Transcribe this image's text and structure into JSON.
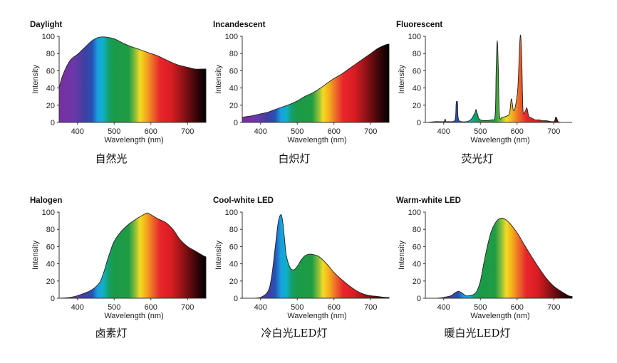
{
  "x_axis_label": "Wavelength (nm)",
  "y_axis_label": "Intensity",
  "chart_data": [
    {
      "type": "area",
      "title": "Daylight",
      "caption": "自然光",
      "xlabel": "Wavelength (nm)",
      "ylabel": "Intensity",
      "xlim": [
        350,
        750
      ],
      "ylim": [
        0,
        100
      ],
      "xticks": [
        400,
        500,
        600,
        700
      ],
      "yticks": [
        0,
        20,
        40,
        60,
        80,
        100
      ],
      "series": [
        {
          "x": [
            350,
            360,
            380,
            400,
            420,
            440,
            460,
            480,
            500,
            520,
            540,
            560,
            580,
            600,
            620,
            640,
            660,
            680,
            700,
            720,
            740,
            750
          ],
          "values": [
            40,
            55,
            72,
            79,
            87,
            95,
            99,
            99,
            97,
            93,
            89,
            86,
            83,
            80,
            77,
            73,
            69,
            66,
            64,
            62,
            62,
            62
          ]
        }
      ]
    },
    {
      "type": "area",
      "title": "Incandescent",
      "caption": "白炽灯",
      "xlabel": "Wavelength (nm)",
      "ylabel": "Intensity",
      "xlim": [
        350,
        750
      ],
      "ylim": [
        0,
        100
      ],
      "xticks": [
        400,
        500,
        600,
        700
      ],
      "yticks": [
        0,
        20,
        40,
        60,
        80,
        100
      ],
      "series": [
        {
          "x": [
            350,
            380,
            400,
            420,
            440,
            460,
            480,
            500,
            520,
            540,
            560,
            580,
            600,
            620,
            640,
            660,
            680,
            700,
            720,
            740,
            750
          ],
          "values": [
            6,
            8,
            10,
            12,
            15,
            18,
            21,
            25,
            30,
            34,
            39,
            45,
            51,
            56,
            62,
            68,
            74,
            80,
            86,
            90,
            91
          ]
        }
      ]
    },
    {
      "type": "area",
      "title": "Fluorescent",
      "caption": "荧光灯",
      "xlabel": "Wavelength (nm)",
      "ylabel": "Intensity",
      "xlim": [
        350,
        750
      ],
      "ylim": [
        0,
        100
      ],
      "xticks": [
        400,
        500,
        600,
        700
      ],
      "yticks": [
        0,
        20,
        40,
        60,
        80,
        100
      ],
      "series": [
        {
          "x": [
            355,
            380,
            400,
            404,
            406,
            410,
            430,
            434,
            436,
            438,
            442,
            470,
            484,
            488,
            492,
            500,
            530,
            540,
            543,
            546,
            549,
            552,
            560,
            575,
            580,
            584,
            587,
            590,
            595,
            602,
            607,
            610,
            613,
            616,
            622,
            626,
            629,
            632,
            640,
            650,
            660,
            670,
            680,
            700,
            705,
            708,
            712,
            720
          ],
          "values": [
            0,
            1,
            1,
            4,
            1,
            1,
            2,
            22,
            24,
            22,
            2,
            2,
            10,
            15,
            10,
            3,
            3,
            8,
            60,
            95,
            60,
            8,
            6,
            8,
            12,
            27,
            22,
            14,
            18,
            40,
            90,
            100,
            70,
            15,
            13,
            17,
            13,
            7,
            5,
            3,
            3,
            2,
            2,
            1,
            6,
            5,
            1,
            0
          ]
        }
      ]
    },
    {
      "type": "area",
      "title": "Halogen",
      "caption": "卤素灯",
      "xlabel": "Wavelength (nm)",
      "ylabel": "Intensity",
      "xlim": [
        350,
        750
      ],
      "ylim": [
        0,
        100
      ],
      "xticks": [
        400,
        500,
        600,
        700
      ],
      "yticks": [
        0,
        20,
        40,
        60,
        80,
        100
      ],
      "series": [
        {
          "x": [
            350,
            380,
            400,
            420,
            440,
            460,
            470,
            480,
            490,
            500,
            520,
            540,
            560,
            580,
            590,
            600,
            620,
            640,
            660,
            680,
            700,
            720,
            740,
            750
          ],
          "values": [
            0,
            1,
            3,
            6,
            10,
            18,
            28,
            42,
            55,
            66,
            78,
            86,
            92,
            97,
            99,
            97,
            92,
            88,
            80,
            68,
            60,
            55,
            50,
            48
          ]
        }
      ]
    },
    {
      "type": "area",
      "title": "Cool-white LED",
      "caption": "冷白光LED灯",
      "xlabel": "Wavelength (nm)",
      "ylabel": "Intensity",
      "xlim": [
        350,
        750
      ],
      "ylim": [
        0,
        100
      ],
      "xticks": [
        400,
        500,
        600,
        700
      ],
      "yticks": [
        0,
        20,
        40,
        60,
        80,
        100
      ],
      "series": [
        {
          "x": [
            380,
            400,
            420,
            430,
            440,
            448,
            455,
            460,
            465,
            470,
            480,
            490,
            500,
            510,
            520,
            530,
            540,
            550,
            560,
            580,
            600,
            620,
            640,
            660,
            680,
            700,
            720,
            740,
            750
          ],
          "values": [
            0,
            1,
            8,
            25,
            60,
            88,
            97,
            90,
            70,
            50,
            36,
            33,
            37,
            44,
            49,
            51,
            51,
            50,
            48,
            40,
            30,
            22,
            15,
            9,
            5,
            3,
            2,
            1,
            1
          ]
        }
      ]
    },
    {
      "type": "area",
      "title": "Warm-white LED",
      "caption": "暖白光LED灯",
      "xlabel": "Wavelength (nm)",
      "ylabel": "Intensity",
      "xlim": [
        350,
        750
      ],
      "ylim": [
        0,
        100
      ],
      "xticks": [
        400,
        500,
        600,
        700
      ],
      "yticks": [
        0,
        20,
        40,
        60,
        80,
        100
      ],
      "series": [
        {
          "x": [
            380,
            400,
            420,
            430,
            440,
            450,
            460,
            470,
            480,
            490,
            500,
            510,
            520,
            530,
            540,
            550,
            560,
            570,
            580,
            600,
            620,
            640,
            660,
            680,
            700,
            720,
            740,
            750
          ],
          "values": [
            0,
            1,
            3,
            6,
            8,
            6,
            3,
            3,
            4,
            8,
            20,
            42,
            62,
            78,
            87,
            92,
            93,
            91,
            87,
            76,
            62,
            48,
            35,
            23,
            14,
            8,
            3,
            2
          ]
        }
      ]
    }
  ]
}
